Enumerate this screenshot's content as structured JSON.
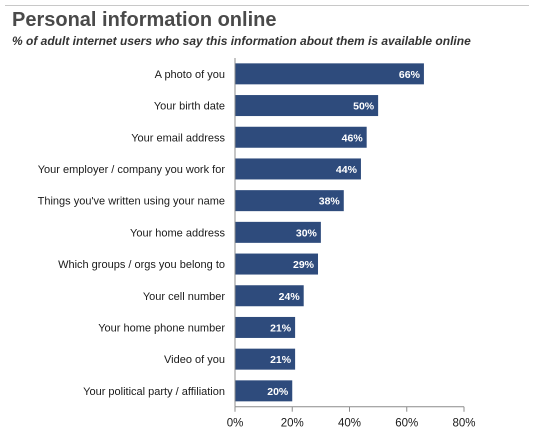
{
  "chart_data": {
    "type": "bar",
    "orientation": "horizontal",
    "title": "Personal information online",
    "subtitle": "% of adult internet users who say this information about them is available online",
    "categories": [
      "A photo of you",
      "Your birth date",
      "Your email address",
      "Your employer / company you work for",
      "Things you've written using your name",
      "Your home address",
      "Which groups / orgs you belong to",
      "Your cell number",
      "Your home phone number",
      "Video of you",
      "Your political party / affiliation"
    ],
    "values": [
      66,
      50,
      46,
      44,
      38,
      30,
      29,
      24,
      21,
      21,
      20
    ],
    "value_labels": [
      "66%",
      "50%",
      "46%",
      "44%",
      "38%",
      "30%",
      "29%",
      "24%",
      "21%",
      "21%",
      "20%"
    ],
    "xticks": [
      "0%",
      "20%",
      "40%",
      "60%",
      "80%"
    ],
    "xlim": [
      0,
      80
    ],
    "xlabel": "",
    "ylabel": "",
    "grid": false,
    "bar_color": "#2e4b7c",
    "value_label_color": "#ffffff"
  }
}
